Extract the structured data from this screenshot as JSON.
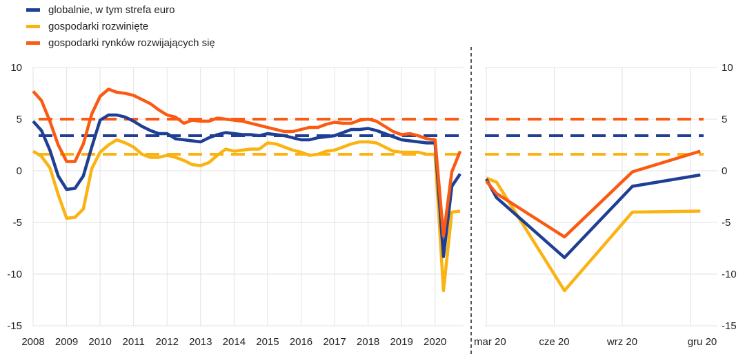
{
  "chart_data": {
    "type": "line",
    "legend": [
      {
        "name": "globalnie, w tym strefa euro",
        "color": "#1f3f94"
      },
      {
        "name": "gospodarki rozwinięte",
        "color": "#fbb313"
      },
      {
        "name": "gospodarki rynków rozwijających się",
        "color": "#fa5a12"
      }
    ],
    "ylim": [
      -15,
      10
    ],
    "yticks": [
      -15,
      -10,
      -5,
      0,
      5,
      10
    ],
    "left_panel": {
      "x_labels": [
        "2008",
        "2009",
        "2010",
        "2011",
        "2012",
        "2013",
        "2014",
        "2015",
        "2016",
        "2017",
        "2018",
        "2019",
        "2020"
      ],
      "xlim": [
        2008,
        2020.85
      ],
      "series": [
        {
          "name": "globalnie, w tym strefa euro",
          "color": "#1f3f94",
          "x": [
            2008.0,
            2008.25,
            2008.5,
            2008.75,
            2009.0,
            2009.25,
            2009.5,
            2009.75,
            2010.0,
            2010.25,
            2010.5,
            2010.75,
            2011.0,
            2011.25,
            2011.5,
            2011.75,
            2012.0,
            2012.25,
            2012.5,
            2012.75,
            2013.0,
            2013.25,
            2013.5,
            2013.75,
            2014.0,
            2014.25,
            2014.5,
            2014.75,
            2015.0,
            2015.25,
            2015.5,
            2015.75,
            2016.0,
            2016.25,
            2016.5,
            2016.75,
            2017.0,
            2017.25,
            2017.5,
            2017.75,
            2018.0,
            2018.25,
            2018.5,
            2018.75,
            2019.0,
            2019.25,
            2019.5,
            2019.75,
            2020.0,
            2020.25,
            2020.5,
            2020.75
          ],
          "y": [
            4.8,
            3.9,
            2.0,
            -0.5,
            -1.8,
            -1.7,
            -0.5,
            2.3,
            4.9,
            5.4,
            5.4,
            5.2,
            4.8,
            4.3,
            3.9,
            3.6,
            3.6,
            3.1,
            3.0,
            2.9,
            2.8,
            3.2,
            3.5,
            3.7,
            3.6,
            3.5,
            3.5,
            3.4,
            3.6,
            3.5,
            3.4,
            3.2,
            3.0,
            3.0,
            3.2,
            3.3,
            3.4,
            3.7,
            4.0,
            4.0,
            4.1,
            3.9,
            3.6,
            3.3,
            3.0,
            2.9,
            2.8,
            2.7,
            2.7,
            -8.3,
            -1.5,
            -0.3
          ]
        },
        {
          "name": "gospodarki rozwinięte",
          "color": "#fbb313",
          "x": [
            2008.0,
            2008.25,
            2008.5,
            2008.75,
            2009.0,
            2009.25,
            2009.5,
            2009.75,
            2010.0,
            2010.25,
            2010.5,
            2010.75,
            2011.0,
            2011.25,
            2011.5,
            2011.75,
            2012.0,
            2012.25,
            2012.5,
            2012.75,
            2013.0,
            2013.25,
            2013.5,
            2013.75,
            2014.0,
            2014.25,
            2014.5,
            2014.75,
            2015.0,
            2015.25,
            2015.5,
            2015.75,
            2016.0,
            2016.25,
            2016.5,
            2016.75,
            2017.0,
            2017.25,
            2017.5,
            2017.75,
            2018.0,
            2018.25,
            2018.5,
            2018.75,
            2019.0,
            2019.25,
            2019.5,
            2019.75,
            2020.0,
            2020.25,
            2020.5,
            2020.75
          ],
          "y": [
            1.9,
            1.4,
            0.3,
            -2.3,
            -4.6,
            -4.5,
            -3.7,
            0.2,
            1.8,
            2.5,
            3.0,
            2.7,
            2.3,
            1.6,
            1.3,
            1.3,
            1.5,
            1.3,
            1.0,
            0.6,
            0.5,
            0.8,
            1.5,
            2.1,
            1.9,
            2.0,
            2.1,
            2.1,
            2.7,
            2.6,
            2.3,
            2.0,
            1.8,
            1.5,
            1.6,
            1.9,
            2.0,
            2.3,
            2.6,
            2.8,
            2.8,
            2.7,
            2.3,
            1.9,
            1.8,
            1.8,
            1.8,
            1.6,
            1.6,
            -11.6,
            -4.0,
            -3.9
          ]
        },
        {
          "name": "gospodarki rynków rozwijających się",
          "color": "#fa5a12",
          "x": [
            2008.0,
            2008.25,
            2008.5,
            2008.75,
            2009.0,
            2009.25,
            2009.5,
            2009.75,
            2010.0,
            2010.25,
            2010.5,
            2010.75,
            2011.0,
            2011.25,
            2011.5,
            2011.75,
            2012.0,
            2012.25,
            2012.5,
            2012.75,
            2013.0,
            2013.25,
            2013.5,
            2013.75,
            2014.0,
            2014.25,
            2014.5,
            2014.75,
            2015.0,
            2015.25,
            2015.5,
            2015.75,
            2016.0,
            2016.25,
            2016.5,
            2016.75,
            2017.0,
            2017.25,
            2017.5,
            2017.75,
            2018.0,
            2018.25,
            2018.5,
            2018.75,
            2019.0,
            2019.25,
            2019.5,
            2019.75,
            2020.0,
            2020.25,
            2020.5,
            2020.75
          ],
          "y": [
            7.7,
            6.8,
            4.8,
            2.5,
            0.9,
            0.9,
            2.6,
            5.5,
            7.2,
            7.9,
            7.6,
            7.5,
            7.3,
            6.9,
            6.5,
            5.9,
            5.4,
            5.2,
            4.6,
            4.9,
            4.8,
            4.8,
            5.1,
            5.0,
            4.9,
            4.8,
            4.6,
            4.4,
            4.2,
            4.0,
            3.8,
            3.8,
            4.0,
            4.2,
            4.2,
            4.5,
            4.7,
            4.6,
            4.6,
            4.9,
            5.0,
            4.8,
            4.3,
            3.8,
            3.5,
            3.6,
            3.4,
            3.1,
            3.0,
            -6.3,
            -0.1,
            1.9
          ]
        }
      ],
      "averages": [
        {
          "name": "gospodarki rynków rozwijających się",
          "color": "#fa5a12",
          "value": 5.0
        },
        {
          "name": "globalnie, w tym strefa euro",
          "color": "#1f3f94",
          "value": 3.4
        },
        {
          "name": "gospodarki rozwinięte",
          "color": "#fbb313",
          "value": 1.6
        }
      ]
    },
    "right_panel": {
      "x_labels": [
        "mar 20",
        "cze 20",
        "wrz 20",
        "gru 20"
      ],
      "series": [
        {
          "name": "globalnie, w tym strefa euro",
          "color": "#1f3f94",
          "x": [
            0,
            0.15,
            1.15,
            2.15,
            3.15
          ],
          "y": [
            -0.8,
            -2.6,
            -8.4,
            -1.5,
            -0.4
          ]
        },
        {
          "name": "gospodarki rozwinięte",
          "color": "#fbb313",
          "x": [
            0,
            0.15,
            1.15,
            2.15,
            3.15
          ],
          "y": [
            -0.7,
            -1.1,
            -11.6,
            -4.0,
            -3.9
          ]
        },
        {
          "name": "gospodarki rynków rozwijających się",
          "color": "#fa5a12",
          "x": [
            0,
            0.15,
            1.15,
            2.15,
            3.15
          ],
          "y": [
            -1.0,
            -2.2,
            -6.4,
            -0.1,
            1.9
          ]
        }
      ],
      "averages": [
        {
          "name": "gospodarki rynków rozwijających się",
          "color": "#fa5a12",
          "value": 5.0
        },
        {
          "name": "globalnie, w tym strefa euro",
          "color": "#1f3f94",
          "value": 3.4
        },
        {
          "name": "gospodarki rozwinięte",
          "color": "#fbb313",
          "value": 1.6
        }
      ]
    }
  }
}
